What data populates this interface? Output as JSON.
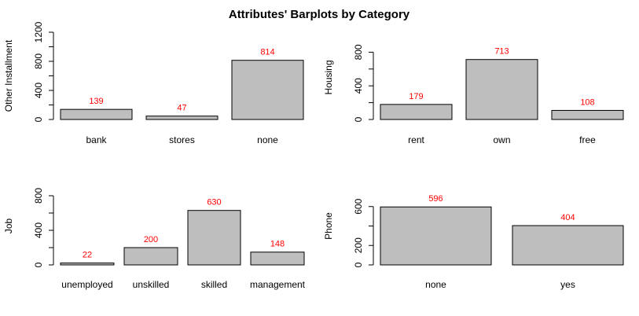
{
  "title": "Attributes' Barplots by Category",
  "chart_data": [
    {
      "type": "bar",
      "ylabel": "Other Installment",
      "categories": [
        "bank",
        "stores",
        "none"
      ],
      "values": [
        139,
        47,
        814
      ],
      "ylim": [
        0,
        1200
      ],
      "yticks": [
        0,
        400,
        800,
        1200
      ],
      "yticklabels": [
        "0",
        "400",
        "800",
        "1200"
      ],
      "yminor": [
        200,
        600,
        1000
      ],
      "value_labels": [
        "139",
        "47",
        "814"
      ],
      "value_label_color": "#ff0000",
      "bar_color": "#bebebe"
    },
    {
      "type": "bar",
      "ylabel": "Housing",
      "categories": [
        "rent",
        "own",
        "free"
      ],
      "values": [
        179,
        713,
        108
      ],
      "ylim": [
        0,
        1000
      ],
      "yticks": [
        0,
        400,
        800
      ],
      "yticklabels": [
        "0",
        "400",
        "800"
      ],
      "yminor": [
        200,
        600
      ],
      "value_labels": [
        "179",
        "713",
        "108"
      ],
      "value_label_color": "#ff0000",
      "bar_color": "#bebebe"
    },
    {
      "type": "bar",
      "ylabel": "Job",
      "categories": [
        "unemployed",
        "unskilled",
        "skilled",
        "management"
      ],
      "values": [
        22,
        200,
        630,
        148
      ],
      "ylim": [
        0,
        900
      ],
      "yticks": [
        0,
        400,
        800
      ],
      "yticklabels": [
        "0",
        "400",
        "800"
      ],
      "yminor": [
        200,
        600
      ],
      "value_labels": [
        "22",
        "200",
        "630",
        "148"
      ],
      "value_label_color": "#ff0000",
      "bar_color": "#bebebe"
    },
    {
      "type": "bar",
      "ylabel": "Phone",
      "categories": [
        "none",
        "yes"
      ],
      "values": [
        596,
        404
      ],
      "ylim": [
        0,
        800
      ],
      "yticks": [
        0,
        200,
        600
      ],
      "yticklabels": [
        "0",
        "200",
        "600"
      ],
      "yminor": [
        400
      ],
      "value_labels": [
        "596",
        "404"
      ],
      "value_label_color": "#ff0000",
      "bar_color": "#bebebe"
    }
  ]
}
